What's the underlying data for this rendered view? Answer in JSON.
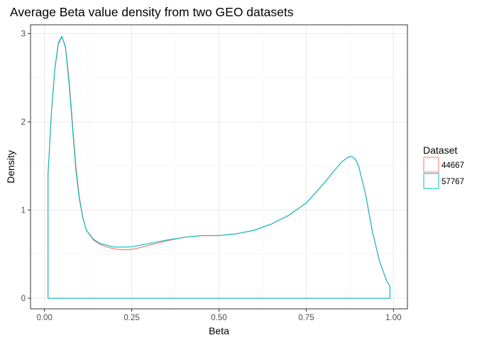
{
  "chart_data": {
    "type": "line",
    "title": "Average Beta value density from two GEO datasets",
    "xlabel": "Beta",
    "ylabel": "Density",
    "xlim": [
      -0.04,
      1.04
    ],
    "ylim": [
      -0.12,
      3.1
    ],
    "x_ticks": [
      "0.00",
      "0.25",
      "0.50",
      "0.75",
      "1.00"
    ],
    "y_ticks": [
      "0",
      "1",
      "2",
      "3"
    ],
    "grid": true,
    "legend_position": "right",
    "legend_title": "Dataset",
    "series": [
      {
        "name": "44667",
        "color": "#F8766D",
        "x": [
          0.01,
          0.01,
          0.02,
          0.03,
          0.04,
          0.05,
          0.06,
          0.07,
          0.08,
          0.09,
          0.1,
          0.11,
          0.12,
          0.14,
          0.16,
          0.18,
          0.2,
          0.22,
          0.24,
          0.26,
          0.3,
          0.35,
          0.4,
          0.45,
          0.5,
          0.55,
          0.6,
          0.65,
          0.7,
          0.75,
          0.8,
          0.85,
          0.87,
          0.88,
          0.89,
          0.9,
          0.92,
          0.94,
          0.96,
          0.98,
          0.99,
          0.99,
          0.01
        ],
        "y": [
          0,
          1.38,
          2.1,
          2.6,
          2.88,
          2.96,
          2.86,
          2.5,
          2.0,
          1.5,
          1.15,
          0.92,
          0.77,
          0.66,
          0.61,
          0.58,
          0.56,
          0.55,
          0.55,
          0.56,
          0.6,
          0.65,
          0.69,
          0.71,
          0.71,
          0.73,
          0.77,
          0.84,
          0.94,
          1.08,
          1.3,
          1.54,
          1.6,
          1.61,
          1.58,
          1.5,
          1.18,
          0.75,
          0.42,
          0.2,
          0.13,
          0,
          0
        ]
      },
      {
        "name": "57767",
        "color": "#00BFC4",
        "x": [
          0.01,
          0.01,
          0.02,
          0.03,
          0.04,
          0.05,
          0.06,
          0.07,
          0.08,
          0.09,
          0.1,
          0.11,
          0.12,
          0.14,
          0.16,
          0.18,
          0.2,
          0.22,
          0.24,
          0.26,
          0.3,
          0.35,
          0.4,
          0.45,
          0.5,
          0.55,
          0.6,
          0.65,
          0.7,
          0.75,
          0.8,
          0.85,
          0.87,
          0.88,
          0.89,
          0.9,
          0.92,
          0.94,
          0.96,
          0.98,
          0.99,
          0.99,
          0.01
        ],
        "y": [
          0,
          1.4,
          2.12,
          2.62,
          2.9,
          2.97,
          2.84,
          2.45,
          1.95,
          1.45,
          1.12,
          0.91,
          0.77,
          0.67,
          0.62,
          0.6,
          0.58,
          0.58,
          0.58,
          0.59,
          0.62,
          0.66,
          0.69,
          0.71,
          0.71,
          0.73,
          0.77,
          0.84,
          0.94,
          1.08,
          1.3,
          1.54,
          1.6,
          1.61,
          1.58,
          1.5,
          1.18,
          0.75,
          0.42,
          0.2,
          0.13,
          0,
          0
        ]
      }
    ]
  }
}
